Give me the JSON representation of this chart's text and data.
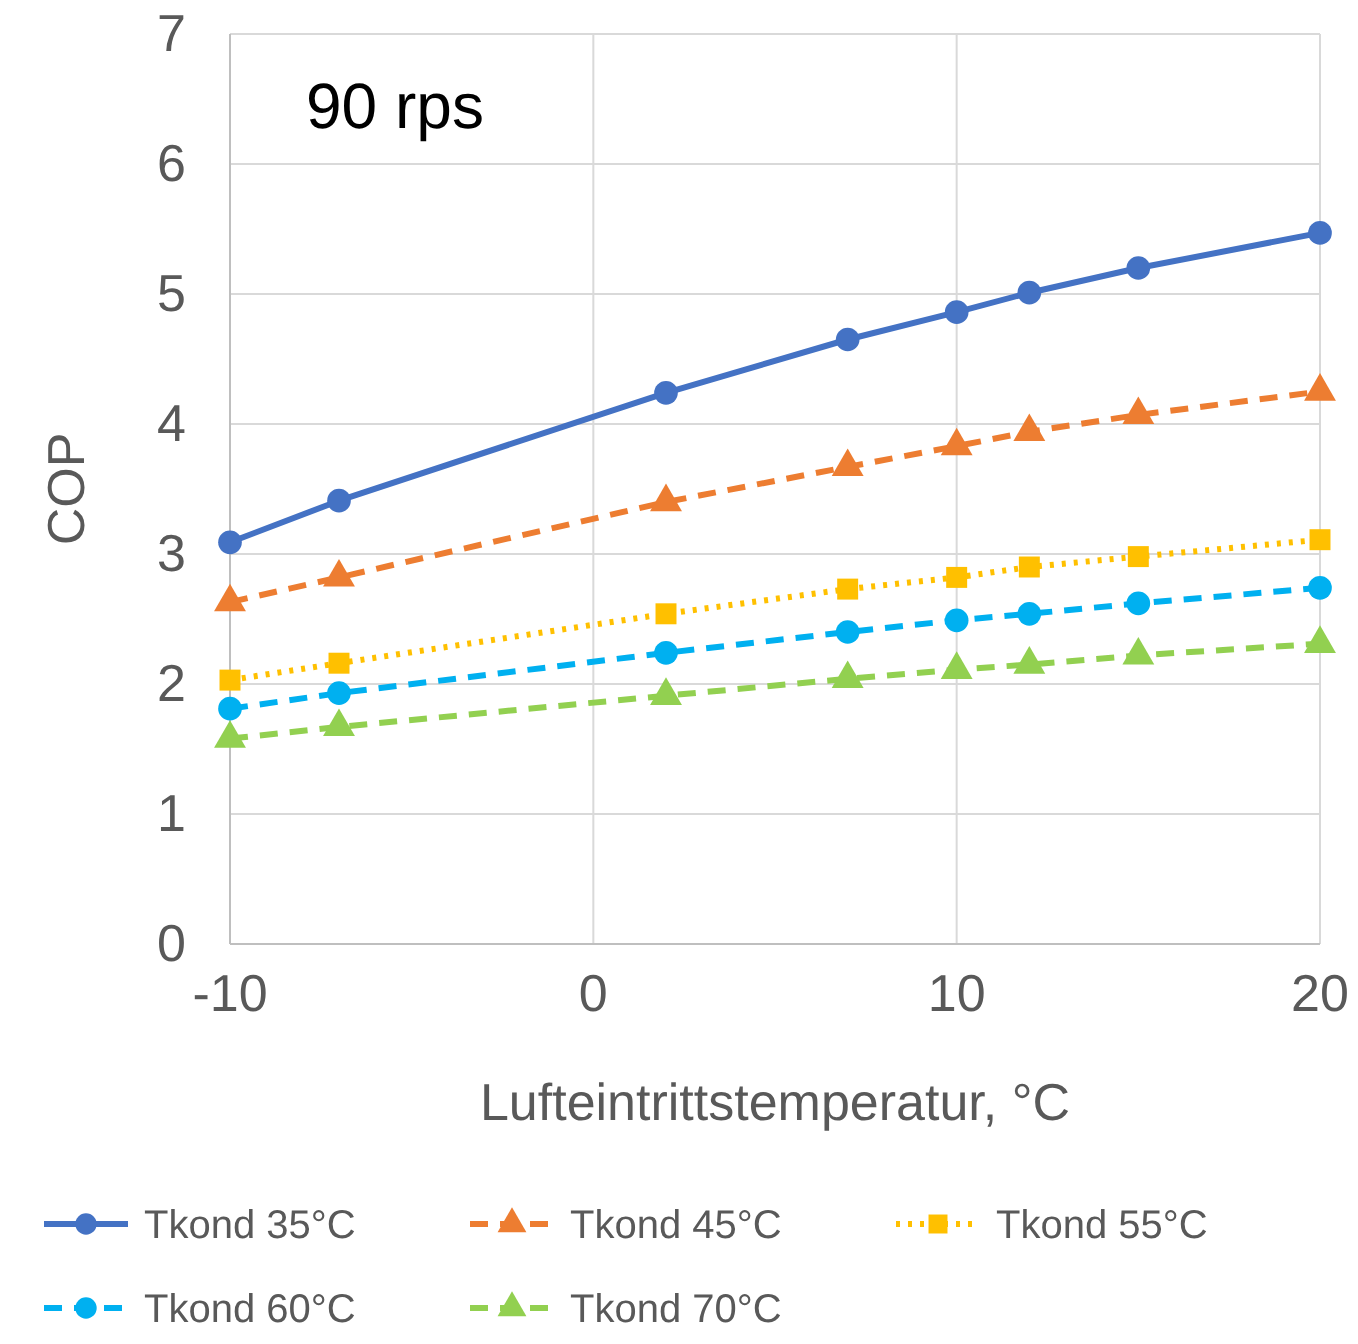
{
  "chart_data": {
    "type": "line",
    "xlabel": "Lufteintrittstemperatur, °C",
    "ylabel": "COP",
    "annotations": [
      "90 rps"
    ],
    "x": [
      -10,
      -7,
      2,
      7,
      10,
      12,
      15,
      20
    ],
    "xlim": [
      -10,
      20
    ],
    "xticks": [
      -10,
      0,
      10,
      20
    ],
    "ylim": [
      0,
      7
    ],
    "yticks": [
      0,
      1,
      2,
      3,
      4,
      5,
      6,
      7
    ],
    "grid": true,
    "legend": "bottom",
    "series": [
      {
        "name": "Tkond 35°C",
        "color": "#4472c4",
        "marker": "circle",
        "line_style": "solid",
        "values": [
          3.09,
          3.41,
          4.24,
          4.65,
          4.86,
          5.01,
          5.2,
          5.47
        ]
      },
      {
        "name": "Tkond 45°C",
        "color": "#ed7d31",
        "marker": "triangle",
        "line_style": "dashed",
        "values": [
          2.63,
          2.82,
          3.4,
          3.67,
          3.83,
          3.94,
          4.07,
          4.25
        ]
      },
      {
        "name": "Tkond 55°C",
        "color": "#ffc000",
        "marker": "square",
        "line_style": "dotted",
        "values": [
          2.03,
          2.16,
          2.54,
          2.73,
          2.82,
          2.9,
          2.98,
          3.11
        ]
      },
      {
        "name": "Tkond 60°C",
        "color": "#00b0f0",
        "marker": "circle",
        "line_style": "dashed",
        "values": [
          1.81,
          1.93,
          2.24,
          2.4,
          2.49,
          2.54,
          2.62,
          2.74
        ]
      },
      {
        "name": "Tkond 70°C",
        "color": "#92d050",
        "marker": "triangle",
        "line_style": "dashed",
        "values": [
          1.58,
          1.67,
          1.91,
          2.04,
          2.11,
          2.15,
          2.22,
          2.31
        ]
      }
    ]
  }
}
